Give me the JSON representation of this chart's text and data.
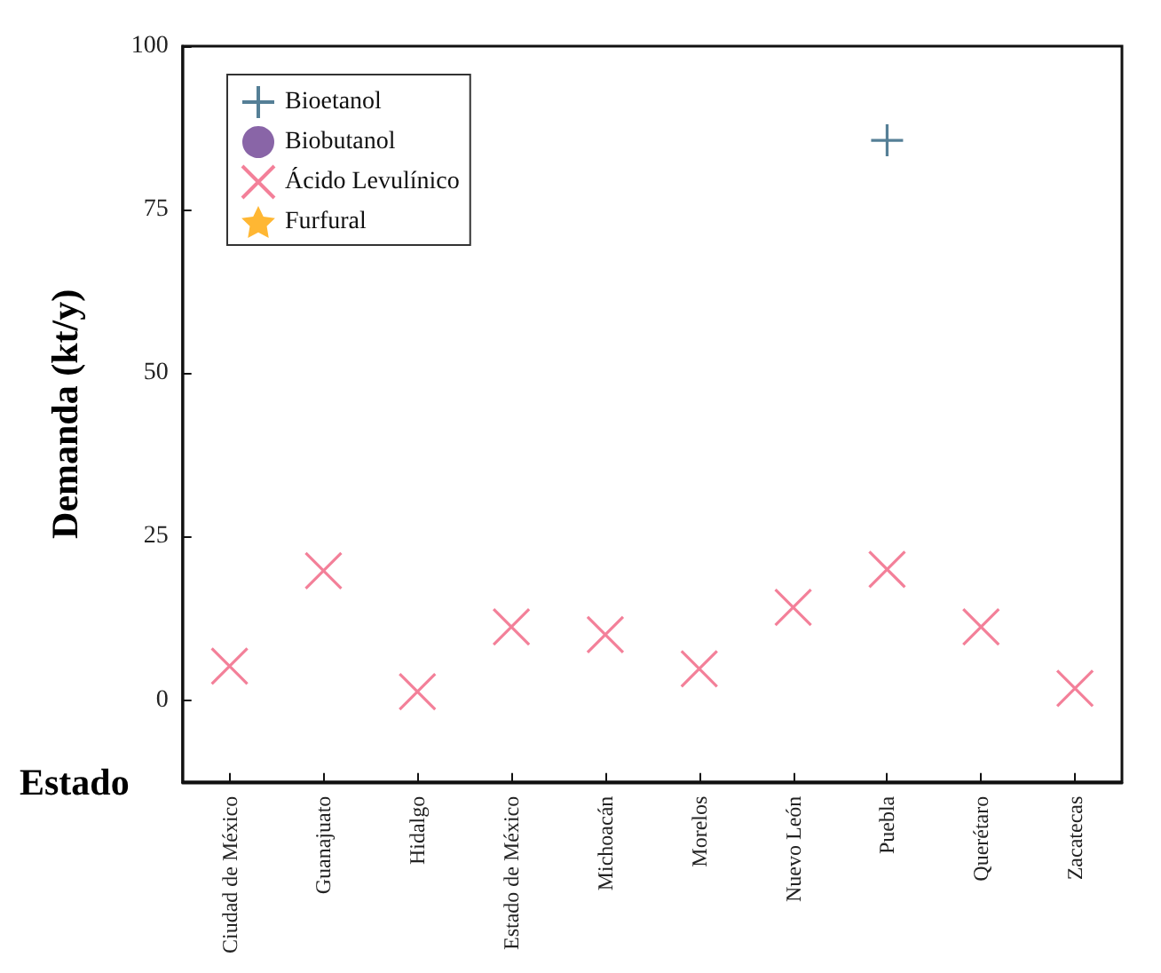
{
  "chart_data": {
    "type": "scatter",
    "xlabel": "Estado",
    "ylabel": "Demanda (kt/y)",
    "categories": [
      "Ciudad de México",
      "Guanajuato",
      "Hidalgo",
      "Estado de México",
      "Michoacán",
      "Morelos",
      "Nuevo León",
      "Puebla",
      "Querétaro",
      "Zacatecas"
    ],
    "series": [
      {
        "name": "Bioetanol",
        "color": "#2a5f7c",
        "marker": "cross",
        "values": [
          null,
          null,
          null,
          null,
          null,
          null,
          null,
          85.6,
          null,
          null
        ]
      },
      {
        "name": "Biobutanol",
        "color": "#6b3f91",
        "marker": "circle",
        "values": [
          null,
          null,
          null,
          null,
          null,
          null,
          null,
          null,
          null,
          null
        ]
      },
      {
        "name": "Ácido Levulínico",
        "color": "#f0607f",
        "marker": "x",
        "values": [
          5.2,
          19.8,
          1.3,
          11.2,
          10,
          4.8,
          14.2,
          20,
          11.2,
          1.8
        ]
      },
      {
        "name": "Furfural",
        "color": "#ffa500",
        "marker": "star",
        "values": [
          null,
          null,
          null,
          null,
          null,
          null,
          null,
          null,
          null,
          null
        ]
      }
    ],
    "ylim": [
      -12.5,
      100
    ],
    "yticks": [
      0,
      25,
      50,
      75,
      100
    ],
    "legend": "top left"
  }
}
